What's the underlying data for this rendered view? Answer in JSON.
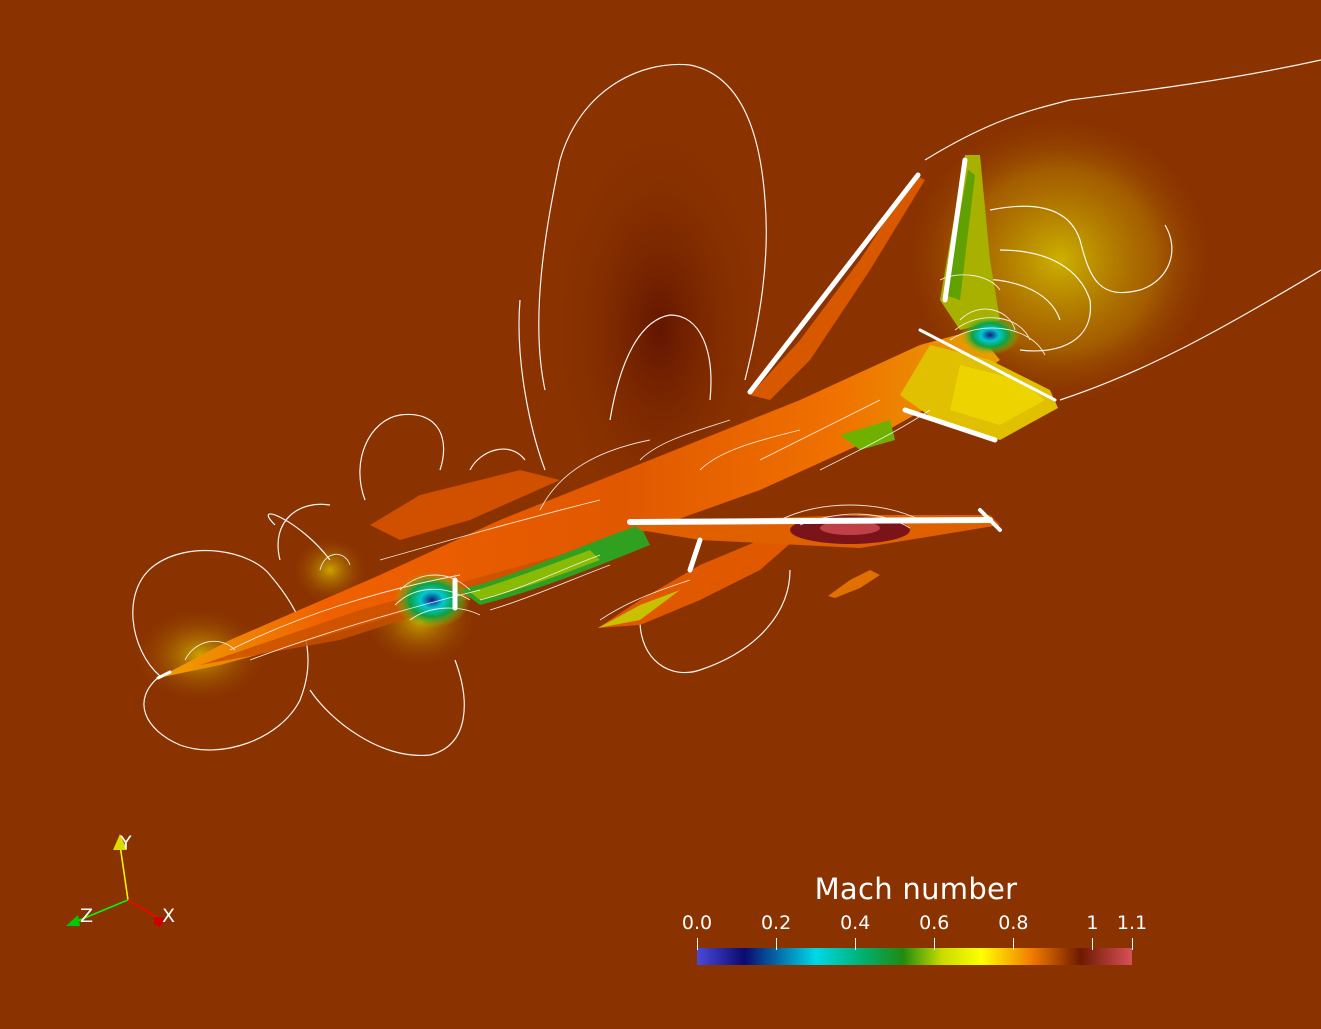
{
  "scalar_bar": {
    "title": "Mach number",
    "ticks": [
      {
        "label": "0.0",
        "value": 0.0
      },
      {
        "label": "0.2",
        "value": 0.2
      },
      {
        "label": "0.4",
        "value": 0.4
      },
      {
        "label": "0.6",
        "value": 0.6
      },
      {
        "label": "0.8",
        "value": 0.8
      },
      {
        "label": "1",
        "value": 1.0
      },
      {
        "label": "1.1",
        "value": 1.1
      }
    ],
    "range": [
      0.0,
      1.1
    ],
    "colormap": [
      {
        "value": 0.0,
        "color": "#4a4adc"
      },
      {
        "value": 0.12,
        "color": "#0a0a70"
      },
      {
        "value": 0.3,
        "color": "#00d8e8"
      },
      {
        "value": 0.42,
        "color": "#00b070"
      },
      {
        "value": 0.52,
        "color": "#208a10"
      },
      {
        "value": 0.62,
        "color": "#c8dc00"
      },
      {
        "value": 0.72,
        "color": "#ffff00"
      },
      {
        "value": 0.85,
        "color": "#f07800"
      },
      {
        "value": 0.97,
        "color": "#6e1a00"
      },
      {
        "value": 1.1,
        "color": "#d85058"
      }
    ]
  },
  "axes": {
    "x_label": "X",
    "y_label": "Y",
    "z_label": "Z",
    "x_color": "#ff0000",
    "y_color": "#ffff00",
    "z_color": "#00ff00"
  },
  "colors": {
    "background_field": "#8a3200",
    "contour_line": "#ffffff"
  }
}
